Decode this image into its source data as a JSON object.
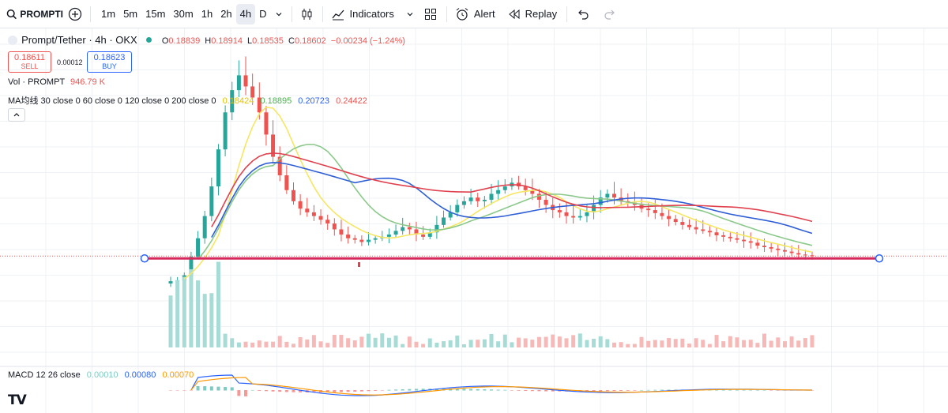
{
  "toolbar": {
    "symbol": "PROMPTI",
    "timeframes": [
      "1m",
      "5m",
      "15m",
      "30m",
      "1h",
      "2h",
      "4h",
      "D"
    ],
    "active_timeframe": "4h",
    "indicators_label": "Indicators",
    "alert_label": "Alert",
    "replay_label": "Replay"
  },
  "legend": {
    "title": "Prompt/Tether · 4h · OKX",
    "ohlc": {
      "o_label": "O",
      "o": "0.18839",
      "h_label": "H",
      "h": "0.18914",
      "l_label": "L",
      "l": "0.18535",
      "c_label": "C",
      "c": "0.18602",
      "change": "−0.00234 (−1.24%)"
    },
    "sell_price": "0.18611",
    "sell_label": "SELL",
    "spread": "0.00012",
    "buy_price": "0.18623",
    "buy_label": "BUY",
    "vol_label": "Vol · PROMPT",
    "vol_value": "946.79 K",
    "ma_label": "MA均线 30 close 0 60 close 0 120 close 0 200 close 0",
    "ma_values": [
      "0.18424",
      "0.18895",
      "0.20723",
      "0.24422"
    ],
    "macd_label": "MACD 12 26 close",
    "macd_values": [
      "0.00010",
      "0.00080",
      "0.00070"
    ]
  },
  "colors": {
    "up": "#26a69a",
    "down": "#ef5350",
    "ma30": "#f5e663",
    "ma60": "#8bc98a",
    "ma120": "#2f5fd6",
    "ma200": "#e0414f",
    "hline": "#d6285a",
    "macd": "#2962ff",
    "signal": "#ff9800"
  },
  "chart_data": {
    "type": "candlestick",
    "price_series_close": [
      0.152,
      0.153,
      0.16,
      0.185,
      0.21,
      0.24,
      0.28,
      0.33,
      0.38,
      0.41,
      0.43,
      0.415,
      0.4,
      0.38,
      0.35,
      0.32,
      0.295,
      0.275,
      0.26,
      0.25,
      0.245,
      0.24,
      0.235,
      0.23,
      0.222,
      0.215,
      0.21,
      0.208,
      0.205,
      0.208,
      0.21,
      0.212,
      0.215,
      0.22,
      0.225,
      0.222,
      0.215,
      0.212,
      0.218,
      0.228,
      0.238,
      0.245,
      0.255,
      0.26,
      0.265,
      0.26,
      0.262,
      0.27,
      0.275,
      0.28,
      0.285,
      0.28,
      0.275,
      0.27,
      0.262,
      0.255,
      0.248,
      0.245,
      0.24,
      0.238,
      0.24,
      0.245,
      0.255,
      0.265,
      0.27,
      0.265,
      0.26,
      0.258,
      0.255,
      0.25,
      0.248,
      0.244,
      0.24,
      0.236,
      0.232,
      0.228,
      0.225,
      0.222,
      0.22,
      0.218,
      0.214,
      0.212,
      0.21,
      0.208,
      0.206,
      0.204,
      0.2,
      0.198,
      0.196,
      0.194,
      0.192,
      0.19,
      0.188,
      0.187,
      0.186
    ],
    "ma_lines": [
      "MA30",
      "MA60",
      "MA120",
      "MA200"
    ],
    "horizontal_line": 0.186
  }
}
